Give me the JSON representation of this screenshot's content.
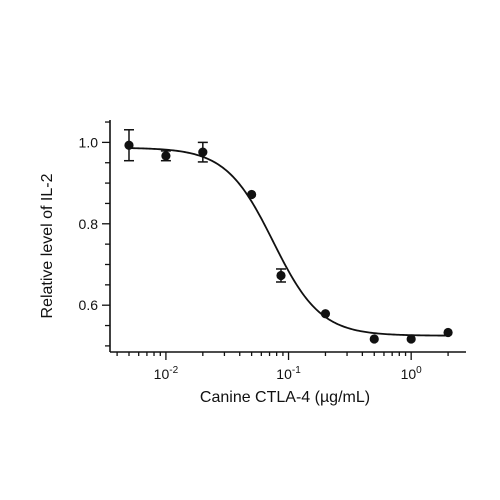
{
  "chart_data": {
    "type": "scatter",
    "title": "",
    "xlabel": "Canine CTLA-4 (µg/mL)",
    "ylabel": "Relative level of IL-2",
    "x_scale": "log",
    "xlim": [
      0.0035,
      2.8
    ],
    "ylim": [
      0.485,
      1.055
    ],
    "x_ticks": [
      {
        "value": 0.01,
        "base": "10",
        "exp": "-2"
      },
      {
        "value": 0.1,
        "base": "10",
        "exp": "-1"
      },
      {
        "value": 1,
        "base": "10",
        "exp": "0"
      }
    ],
    "y_ticks": [
      {
        "value": 1.0,
        "label": "1.0"
      },
      {
        "value": 0.8,
        "label": "0.8"
      },
      {
        "value": 0.6,
        "label": "0.6"
      }
    ],
    "series": [
      {
        "marker": "filled-circle",
        "color": "#111111",
        "x": [
          0.005,
          0.01,
          0.02,
          0.05,
          0.0868,
          0.2,
          0.5,
          1.0,
          2.0
        ],
        "y": [
          0.993,
          0.967,
          0.976,
          0.872,
          0.673,
          0.579,
          0.517,
          0.517,
          0.533
        ],
        "error": [
          0.038,
          0.012,
          0.024,
          0.0,
          0.016,
          0.0,
          0.0,
          0.0,
          0.0
        ]
      }
    ],
    "fit": {
      "type": "four-parameter-logistic",
      "top": 0.987,
      "bottom": 0.525,
      "ec50": 0.075,
      "hill": 2.25
    },
    "grid": false,
    "legend": "none"
  }
}
